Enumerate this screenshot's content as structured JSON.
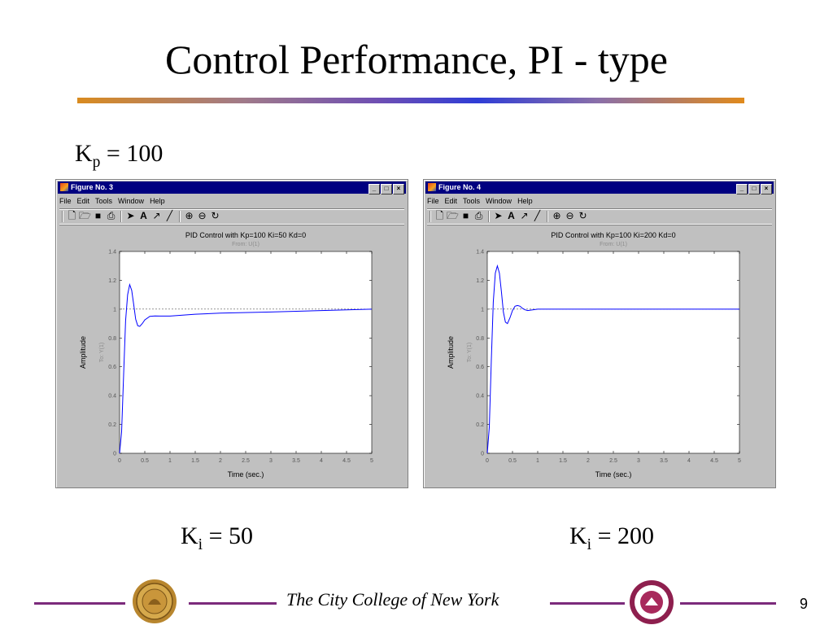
{
  "slide": {
    "title": "Control Performance, PI - type",
    "kp_base": "K",
    "kp_sub": "p",
    "kp_rest": " = 100",
    "footer": "The City College of New York",
    "page_number": "9"
  },
  "colors": {
    "window_title_bg": "#000080",
    "window_bg": "#c0c0c0",
    "curve": "#0000ff",
    "footer_line": "#7b2a7b"
  },
  "windows": [
    {
      "title": "Figure No. 3",
      "menu": [
        "File",
        "Edit",
        "Tools",
        "Window",
        "Help"
      ],
      "toolbar_icons": [
        "new-file-icon",
        "open-folder-icon",
        "save-icon",
        "print-icon",
        "arrow-select-icon",
        "text-a-icon",
        "arrow-draw-icon",
        "line-draw-icon",
        "zoom-in-icon",
        "zoom-out-icon",
        "rotate-icon"
      ],
      "ki_base": "K",
      "ki_sub": "i",
      "ki_rest": " = 50",
      "chart_data": {
        "type": "line",
        "title": "PID Control with Kp=100 Ki=50 Kd=0",
        "subtitle": "From: U(1)",
        "xlabel": "Time (sec.)",
        "ylabel": "Amplitude",
        "ylabel2": "To: Y(1)",
        "xlim": [
          0,
          5
        ],
        "ylim": [
          0,
          1.4
        ],
        "xticks": [
          "0",
          "0.5",
          "1",
          "1.5",
          "2",
          "2.5",
          "3",
          "3.5",
          "4",
          "4.5",
          "5"
        ],
        "yticks": [
          "0",
          "0.2",
          "0.4",
          "0.6",
          "0.8",
          "1",
          "1.2",
          "1.4"
        ],
        "reference": 1,
        "series": [
          {
            "x": [
              0.0,
              0.04,
              0.08,
              0.12,
              0.16,
              0.2,
              0.24,
              0.28,
              0.32,
              0.36,
              0.4,
              0.45,
              0.5,
              0.6,
              0.7,
              0.8,
              1.0,
              1.5,
              2.0,
              3.0,
              4.0,
              4.5,
              5.0
            ],
            "y": [
              0.0,
              0.15,
              0.55,
              0.92,
              1.1,
              1.17,
              1.13,
              1.03,
              0.93,
              0.885,
              0.88,
              0.9,
              0.925,
              0.95,
              0.953,
              0.952,
              0.952,
              0.965,
              0.972,
              0.98,
              0.99,
              0.995,
              1.0
            ]
          }
        ]
      }
    },
    {
      "title": "Figure No. 4",
      "menu": [
        "File",
        "Edit",
        "Tools",
        "Window",
        "Help"
      ],
      "toolbar_icons": [
        "new-file-icon",
        "open-folder-icon",
        "save-icon",
        "print-icon",
        "arrow-select-icon",
        "text-a-icon",
        "arrow-draw-icon",
        "line-draw-icon",
        "zoom-in-icon",
        "zoom-out-icon",
        "rotate-icon"
      ],
      "ki_base": "K",
      "ki_sub": "i",
      "ki_rest": " = 200",
      "chart_data": {
        "type": "line",
        "title": "PID Control with Kp=100 Ki=200 Kd=0",
        "subtitle": "From: U(1)",
        "xlabel": "Time (sec.)",
        "ylabel": "Amplitude",
        "ylabel2": "To: Y(1)",
        "xlim": [
          0,
          5
        ],
        "ylim": [
          0,
          1.4
        ],
        "xticks": [
          "0",
          "0.5",
          "1",
          "1.5",
          "2",
          "2.5",
          "3",
          "3.5",
          "4",
          "4.5",
          "5"
        ],
        "yticks": [
          "0",
          "0.2",
          "0.4",
          "0.6",
          "0.8",
          "1",
          "1.2",
          "1.4"
        ],
        "reference": 1,
        "series": [
          {
            "x": [
              0.0,
              0.04,
              0.08,
              0.12,
              0.16,
              0.2,
              0.24,
              0.28,
              0.32,
              0.36,
              0.4,
              0.45,
              0.5,
              0.55,
              0.6,
              0.65,
              0.7,
              0.75,
              0.8,
              0.9,
              1.0,
              1.2,
              1.5,
              2.0,
              3.0,
              4.0,
              5.0
            ],
            "y": [
              0.0,
              0.18,
              0.65,
              1.05,
              1.25,
              1.3,
              1.25,
              1.12,
              0.98,
              0.91,
              0.9,
              0.94,
              0.99,
              1.02,
              1.025,
              1.02,
              1.005,
              0.995,
              0.99,
              0.995,
              1.0,
              1.0,
              1.0,
              1.0,
              1.0,
              1.0,
              1.0
            ]
          }
        ]
      }
    }
  ]
}
